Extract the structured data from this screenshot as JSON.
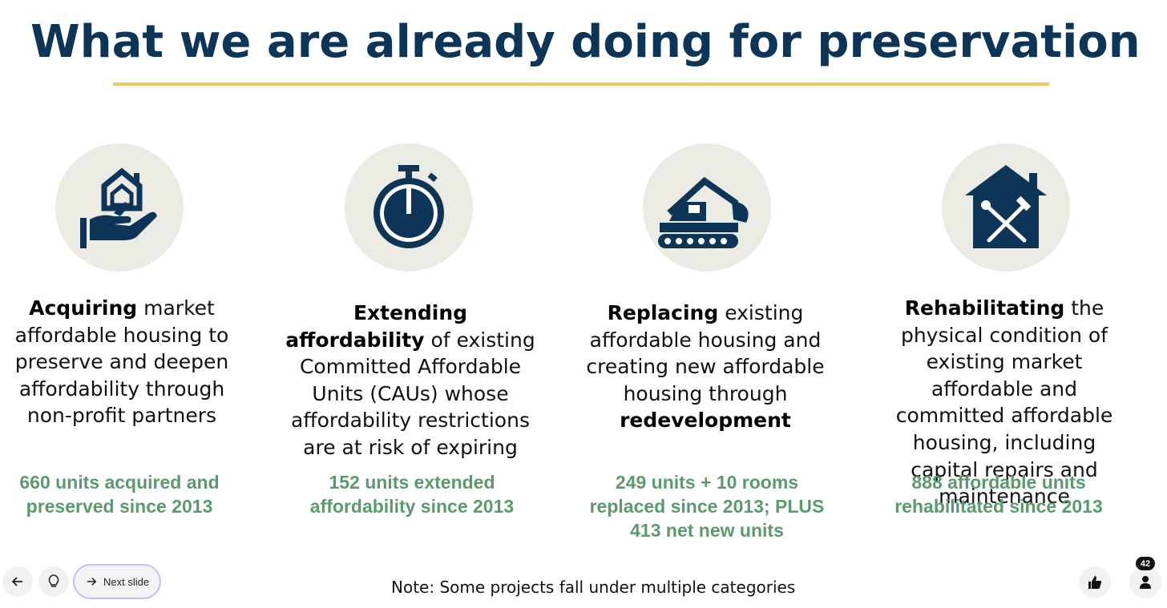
{
  "slide": {
    "title": "What we are already doing for preservation",
    "accent_color": "#f3c55b",
    "title_color": "#0d3557",
    "stat_color": "#5a9a6c",
    "columns": [
      {
        "icon": "house-in-hand-icon",
        "bold": "Acquiring",
        "text": " market affordable housing to preserve and deepen affordability through non-profit partners",
        "stat": "660 units acquired and preserved since 2013"
      },
      {
        "icon": "stopwatch-icon",
        "bold": "Extending affordability",
        "text": " of existing Committed Affordable Units (CAUs) whose affordability restrictions are at risk of expiring",
        "stat": "152 units extended affordability since 2013"
      },
      {
        "icon": "excavator-icon",
        "bold": "Replacing",
        "text": " existing affordable housing and creating new affordable housing through ",
        "bold2": "redevelopment",
        "stat": "249 units + 10 rooms replaced since 2013; PLUS 413 net new units"
      },
      {
        "icon": "house-tools-icon",
        "bold": "Rehabilitating",
        "text": " the physical condition of existing market affordable and committed affordable housing, including capital repairs and maintenance",
        "stat": "888 affordable units rehabilitated since 2013"
      }
    ],
    "note": "Note: Some projects fall under multiple categories"
  },
  "controls": {
    "back_icon": "arrow-left-icon",
    "hint_icon": "lightbulb-icon",
    "next_label": "Next slide",
    "next_icon": "arrow-right-icon",
    "like_icon": "thumbs-up-icon",
    "viewers_icon": "person-icon",
    "viewers_count": "42"
  }
}
